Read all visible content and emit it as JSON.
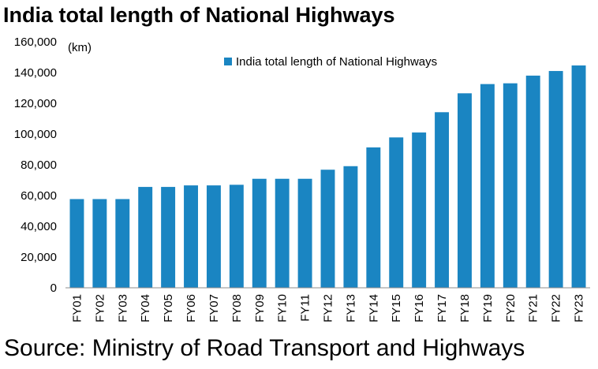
{
  "page": {
    "title": "India total length of National Highways",
    "source": "Source: Ministry of Road Transport and Highways"
  },
  "chart_data": {
    "type": "bar",
    "title": "India total length of National Highways",
    "unit_label": "(km)",
    "xlabel": "",
    "ylabel": "",
    "categories": [
      "FY01",
      "FY02",
      "FY03",
      "FY04",
      "FY05",
      "FY06",
      "FY07",
      "FY08",
      "FY09",
      "FY10",
      "FY11",
      "FY12",
      "FY13",
      "FY14",
      "FY15",
      "FY16",
      "FY17",
      "FY18",
      "FY19",
      "FY20",
      "FY21",
      "FY22",
      "FY23"
    ],
    "series": [
      {
        "name": "India total length of National Highways",
        "color": "#1a85c2",
        "values": [
          57700,
          57700,
          57700,
          65600,
          65600,
          66600,
          66600,
          67000,
          70900,
          70900,
          70900,
          76800,
          79100,
          91300,
          97800,
          101000,
          114200,
          126500,
          132500,
          133000,
          138000,
          141000,
          144600
        ]
      }
    ],
    "ylim": [
      0,
      160000
    ],
    "yticks": [
      0,
      20000,
      40000,
      60000,
      80000,
      100000,
      120000,
      140000,
      160000
    ],
    "ytick_labels": [
      "0",
      "20,000",
      "40,000",
      "60,000",
      "80,000",
      "100,000",
      "120,000",
      "140,000",
      "160,000"
    ],
    "grid": false,
    "legend_position": "top"
  }
}
